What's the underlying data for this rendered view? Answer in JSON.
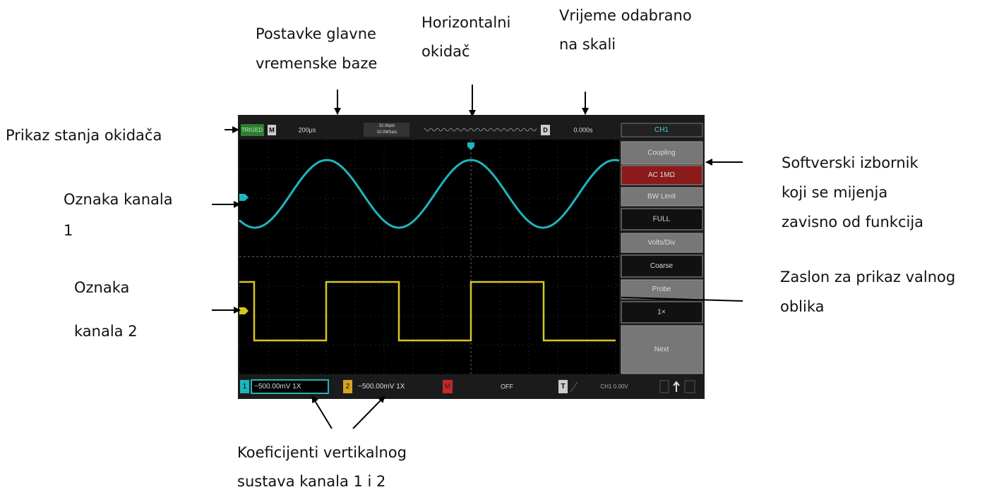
{
  "annotations": {
    "time_base": [
      "Postavke glavne",
      "vremenske baze"
    ],
    "horizontal_trigger": [
      "Horizontalni",
      "okidač"
    ],
    "selected_time": [
      "Vrijeme odabrano",
      "na skali"
    ],
    "trigger_status": [
      "Prikaz stanja okidača"
    ],
    "channel1_marker": [
      "Oznaka kanala",
      "1"
    ],
    "channel2_marker": [
      "Oznaka",
      "kanala 2"
    ],
    "soft_menu": [
      "Softverski izbornik",
      "koji se mijenja",
      "zavisno od funkcija"
    ],
    "waveform_display": [
      "Zaslon za prikaz valnog",
      "oblika"
    ],
    "vertical_coefficients": [
      "Koeficijenti vertikalnog",
      "sustava kanala 1 i 2"
    ]
  },
  "screen": {
    "top_bar": {
      "trigger_state": "TRIGED",
      "mode": "M",
      "time_base": "200μs",
      "memory": [
        "32.0kpts",
        "10.0MSa/s"
      ],
      "delay_label": "D",
      "delay": "0.000s",
      "channel": "CH1"
    },
    "menu": [
      "Coupling",
      "AC 1MΩ",
      "BW Limit",
      "FULL",
      "Volts/Div",
      "Coarse",
      "Probe",
      "1×",
      "Next"
    ],
    "bottom_bar": {
      "ch1_label": "1",
      "ch1_scale": "~500.00mV 1X",
      "ch2_label": "2",
      "ch2_scale": "~500.00mV 1X",
      "math_label": "M",
      "math_state": "OFF",
      "trigger_label": "T",
      "trigger_level": "CH1 0.00V"
    }
  }
}
